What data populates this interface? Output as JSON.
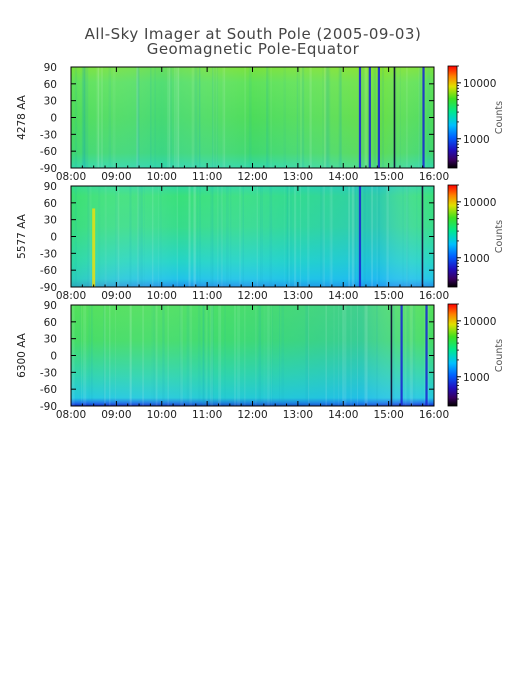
{
  "title_line1": "All-Sky Imager at South Pole (2005-09-03)",
  "title_line2": "Geomagnetic Pole-Equator",
  "chart_data": [
    {
      "type": "heatmap",
      "ylabel": "4278 AA",
      "x_ticks": [
        "08:00",
        "09:00",
        "10:00",
        "11:00",
        "12:00",
        "13:00",
        "14:00",
        "15:00",
        "16:00"
      ],
      "x_range": [
        "08:00",
        "16:00"
      ],
      "y_ticks": [
        90,
        60,
        30,
        0,
        -30,
        -60,
        -90
      ],
      "y_range": [
        -90,
        90
      ],
      "colorbar": {
        "label": "Counts",
        "ticks": [
          10000,
          1000
        ],
        "scale": "log"
      },
      "dominant_level": "green",
      "features": [
        {
          "time": "14:22",
          "level": "dark-blue"
        },
        {
          "time": "14:35",
          "level": "dark-blue"
        },
        {
          "time": "14:47",
          "level": "dark-blue"
        },
        {
          "time": "15:08",
          "level": "black"
        },
        {
          "time": "15:46",
          "level": "dark-blue"
        }
      ]
    },
    {
      "type": "heatmap",
      "ylabel": "5577 AA",
      "x_ticks": [
        "08:00",
        "09:00",
        "10:00",
        "11:00",
        "12:00",
        "13:00",
        "14:00",
        "15:00",
        "16:00"
      ],
      "x_range": [
        "08:00",
        "16:00"
      ],
      "y_ticks": [
        90,
        60,
        30,
        0,
        -30,
        -60,
        -90
      ],
      "y_range": [
        -90,
        90
      ],
      "colorbar": {
        "label": "Counts",
        "ticks": [
          10000,
          1000
        ],
        "scale": "log"
      },
      "dominant_level": "cyan-green",
      "features": [
        {
          "time": "08:30",
          "level": "yellow"
        },
        {
          "time": "14:22",
          "level": "dark-blue"
        },
        {
          "time": "15:45",
          "level": "black"
        }
      ]
    },
    {
      "type": "heatmap",
      "ylabel": "6300 AA",
      "x_ticks": [
        "08:00",
        "09:00",
        "10:00",
        "11:00",
        "12:00",
        "13:00",
        "14:00",
        "15:00",
        "16:00"
      ],
      "x_range": [
        "08:00",
        "16:00"
      ],
      "y_ticks": [
        90,
        60,
        30,
        0,
        -30,
        -60,
        -90
      ],
      "y_range": [
        -90,
        90
      ],
      "colorbar": {
        "label": "Counts",
        "ticks": [
          10000,
          1000
        ],
        "scale": "log"
      },
      "dominant_level": "green",
      "features": [
        {
          "time": "15:04",
          "level": "black"
        },
        {
          "time": "15:17",
          "level": "dark-blue"
        },
        {
          "time": "15:50",
          "level": "dark-blue"
        }
      ]
    }
  ]
}
